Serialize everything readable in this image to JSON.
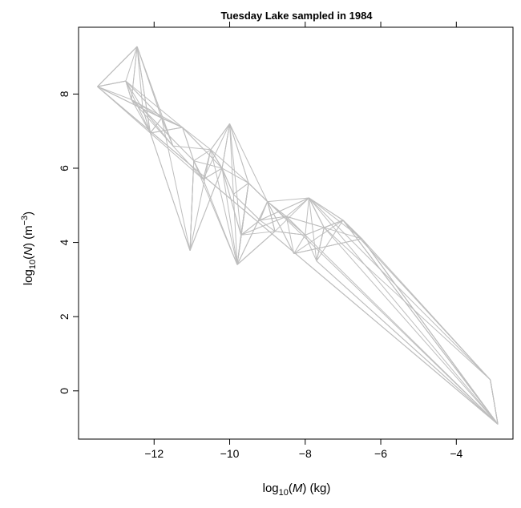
{
  "chart_data": {
    "type": "line",
    "title": "Tuesday Lake sampled in 1984",
    "xlabel": {
      "pre": "log",
      "sub": "10",
      "open": "(",
      "var": "M",
      "close": ")",
      "unit": " (kg)"
    },
    "ylabel": {
      "pre": "log",
      "sub": "10",
      "open": "(",
      "var": "N",
      "close": ")",
      "unit_open": " (m",
      "sup": "−3",
      "unit_close": ")"
    },
    "xlim": [
      -14.0,
      -2.5
    ],
    "ylim": [
      -1.3,
      9.8
    ],
    "x_ticks": [
      {
        "value": -12,
        "label": "−12"
      },
      {
        "value": -10,
        "label": "−10"
      },
      {
        "value": -8,
        "label": "−8"
      },
      {
        "value": -6,
        "label": "−6"
      },
      {
        "value": -4,
        "label": "−4"
      }
    ],
    "top_ticks": [
      -12,
      -10,
      -8,
      -6,
      -4
    ],
    "y_ticks": [
      {
        "value": 0,
        "label": "0"
      },
      {
        "value": 2,
        "label": "2"
      },
      {
        "value": 4,
        "label": "4"
      },
      {
        "value": 6,
        "label": "6"
      },
      {
        "value": 8,
        "label": "8"
      }
    ],
    "line_color": "#bebebe",
    "species": [
      {
        "x": -13.5,
        "y": 8.2
      },
      {
        "x": -12.45,
        "y": 9.28
      },
      {
        "x": -12.75,
        "y": 8.35
      },
      {
        "x": -12.6,
        "y": 7.85
      },
      {
        "x": -12.3,
        "y": 7.6
      },
      {
        "x": -12.1,
        "y": 6.95
      },
      {
        "x": -11.8,
        "y": 7.35
      },
      {
        "x": -11.5,
        "y": 6.6
      },
      {
        "x": -11.25,
        "y": 7.1
      },
      {
        "x": -11.05,
        "y": 3.78
      },
      {
        "x": -10.95,
        "y": 6.2
      },
      {
        "x": -10.7,
        "y": 5.7
      },
      {
        "x": -10.5,
        "y": 6.5
      },
      {
        "x": -10.2,
        "y": 6.0
      },
      {
        "x": -10.0,
        "y": 7.2
      },
      {
        "x": -9.9,
        "y": 5.3
      },
      {
        "x": -9.8,
        "y": 3.4
      },
      {
        "x": -9.7,
        "y": 4.2
      },
      {
        "x": -9.5,
        "y": 5.6
      },
      {
        "x": -9.2,
        "y": 4.6
      },
      {
        "x": -9.0,
        "y": 5.1
      },
      {
        "x": -8.8,
        "y": 4.3
      },
      {
        "x": -8.5,
        "y": 4.7
      },
      {
        "x": -8.3,
        "y": 3.7
      },
      {
        "x": -8.0,
        "y": 4.2
      },
      {
        "x": -7.9,
        "y": 5.2
      },
      {
        "x": -7.7,
        "y": 3.5
      },
      {
        "x": -7.5,
        "y": 4.4
      },
      {
        "x": -7.0,
        "y": 4.6
      },
      {
        "x": -6.5,
        "y": 4.1
      },
      {
        "x": -3.1,
        "y": 0.3
      },
      {
        "x": -2.9,
        "y": -0.9
      }
    ]
  }
}
